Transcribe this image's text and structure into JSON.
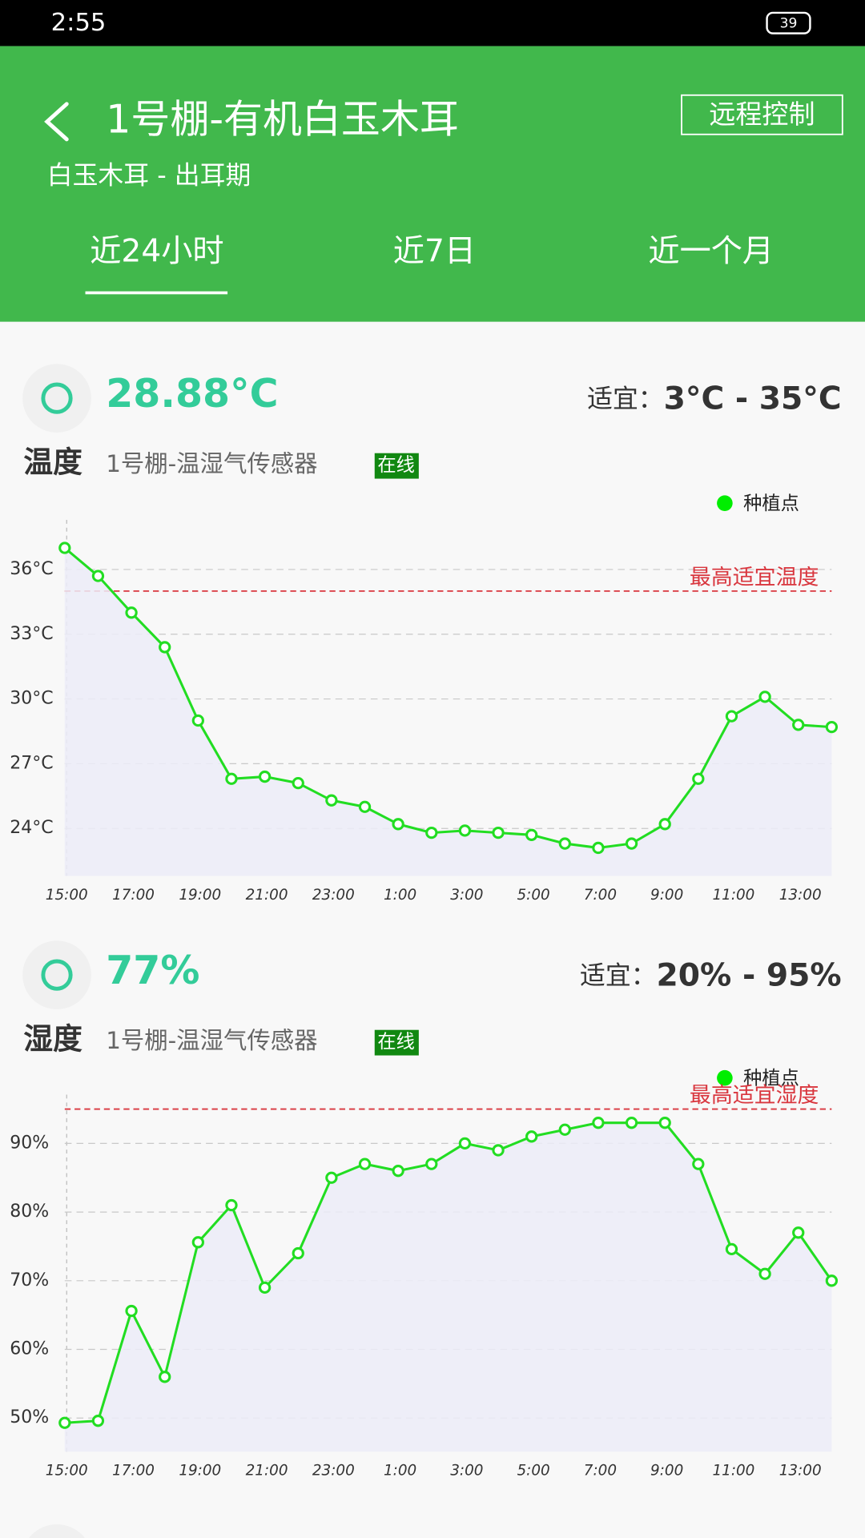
{
  "status_bar": {
    "time": "2:55",
    "battery": "39"
  },
  "header": {
    "title": "1号棚-有机白玉木耳",
    "subtitle": "白玉木耳 - 出耳期",
    "action": "远程控制"
  },
  "tabs": [
    "近24小时",
    "近7日",
    "近一个月"
  ],
  "sections": [
    {
      "value": "28.88°C",
      "range_label": "适宜：",
      "range": "3°C - 35°C",
      "name": "温度",
      "sensor": "1号棚-温湿气传感器",
      "status": "在线",
      "chart": {
        "type": "line",
        "categories": [
          "15:00",
          null,
          "17:00",
          null,
          "19:00",
          null,
          "21:00",
          null,
          "23:00",
          null,
          "1:00",
          null,
          "3:00",
          null,
          "5:00",
          null,
          "7:00",
          null,
          "9:00",
          null,
          "11:00",
          null,
          "13:00",
          null
        ],
        "series": [
          {
            "name": "种植点",
            "color": "#22dd22",
            "values": [
              37.0,
              35.7,
              34.0,
              32.4,
              29.0,
              26.3,
              26.4,
              26.1,
              25.3,
              25.0,
              24.2,
              23.8,
              23.9,
              23.8,
              23.7,
              23.3,
              23.1,
              23.3,
              24.2,
              26.3,
              29.2,
              30.1,
              28.8,
              28.7
            ]
          }
        ],
        "ylim": [
          21.8,
          38.3
        ],
        "yticks": [
          {
            "value": 24,
            "label": "24°C"
          },
          {
            "value": 27,
            "label": "27°C"
          },
          {
            "value": 30,
            "label": "30°C"
          },
          {
            "value": 33,
            "label": "33°C"
          },
          {
            "value": 36,
            "label": "36°C"
          }
        ],
        "grid": true,
        "threshold": {
          "value": 35,
          "label": "最高适宜温度",
          "color": "#d9363e"
        }
      }
    },
    {
      "value": "77%",
      "range_label": "适宜：",
      "range": "20% - 95%",
      "name": "湿度",
      "sensor": "1号棚-温湿气传感器",
      "status": "在线",
      "chart": {
        "type": "line",
        "categories": [
          "15:00",
          null,
          "17:00",
          null,
          "19:00",
          null,
          "21:00",
          null,
          "23:00",
          null,
          "1:00",
          null,
          "3:00",
          null,
          "5:00",
          null,
          "7:00",
          null,
          "9:00",
          null,
          "11:00",
          null,
          "13:00",
          null
        ],
        "series": [
          {
            "name": "种植点",
            "color": "#22dd22",
            "values": [
              49.3,
              49.6,
              65.6,
              56.0,
              75.6,
              81.0,
              69.0,
              74.0,
              85.0,
              87.0,
              86.0,
              87.0,
              90.0,
              89.0,
              91.0,
              92.0,
              93.0,
              93.0,
              93.0,
              87.0,
              74.6,
              71.0,
              77.0,
              70.0
            ]
          }
        ],
        "ylim": [
          45.1,
          97.1
        ],
        "yticks": [
          {
            "value": 50,
            "label": "50%"
          },
          {
            "value": 60,
            "label": "60%"
          },
          {
            "value": 70,
            "label": "70%"
          },
          {
            "value": 80,
            "label": "80%"
          },
          {
            "value": 90,
            "label": "90%"
          }
        ],
        "grid": true,
        "threshold": {
          "value": 95,
          "label": "最高适宜湿度",
          "color": "#d9363e"
        }
      }
    }
  ]
}
